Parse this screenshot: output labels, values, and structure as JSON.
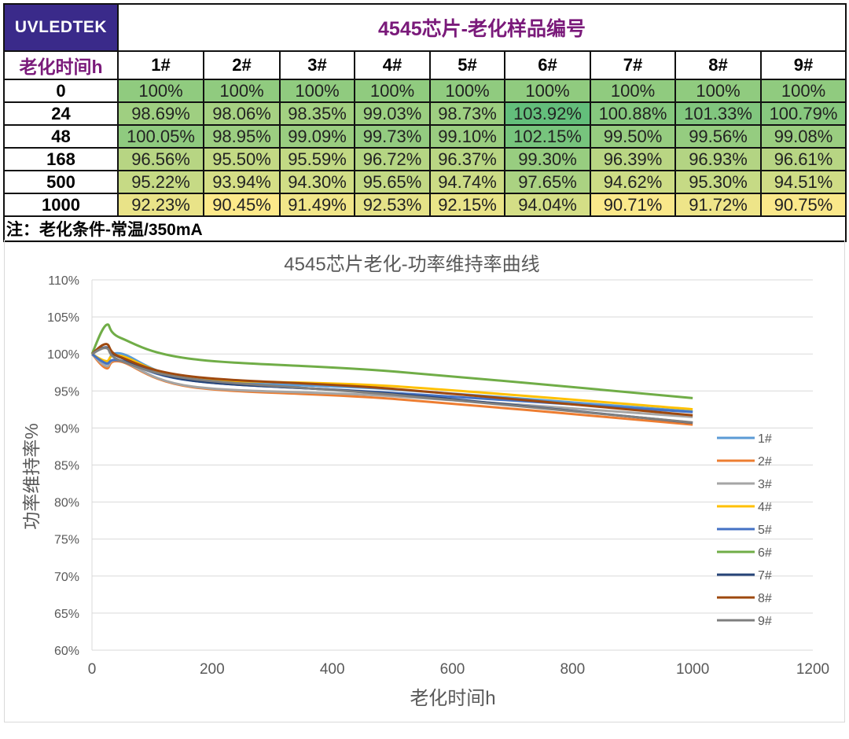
{
  "table": {
    "logo": "UVLEDTEK",
    "title": "4545芯片-老化样品编号",
    "time_header": "老化时间h",
    "columns": [
      "1#",
      "2#",
      "3#",
      "4#",
      "5#",
      "6#",
      "7#",
      "8#",
      "9#"
    ],
    "rows": [
      {
        "time": "0",
        "values": [
          "100%",
          "100%",
          "100%",
          "100%",
          "100%",
          "100%",
          "100%",
          "100%",
          "100%"
        ]
      },
      {
        "time": "24",
        "values": [
          "98.69%",
          "98.06%",
          "98.35%",
          "99.03%",
          "98.73%",
          "103.92%",
          "100.88%",
          "101.33%",
          "100.79%"
        ]
      },
      {
        "time": "48",
        "values": [
          "100.05%",
          "98.95%",
          "99.09%",
          "99.73%",
          "99.10%",
          "102.15%",
          "99.50%",
          "99.56%",
          "99.08%"
        ]
      },
      {
        "time": "168",
        "values": [
          "96.56%",
          "95.50%",
          "95.59%",
          "96.72%",
          "96.37%",
          "99.30%",
          "96.39%",
          "96.93%",
          "96.61%"
        ]
      },
      {
        "time": "500",
        "values": [
          "95.22%",
          "93.94%",
          "94.30%",
          "95.65%",
          "94.74%",
          "97.65%",
          "94.62%",
          "95.30%",
          "94.51%"
        ]
      },
      {
        "time": "1000",
        "values": [
          "92.23%",
          "90.45%",
          "91.49%",
          "92.53%",
          "92.15%",
          "94.04%",
          "90.71%",
          "91.72%",
          "90.75%"
        ]
      }
    ],
    "note": "注：老化条件-常温/350mA",
    "color_scale": {
      "low": "#fde98a",
      "high": "#63be7b"
    }
  },
  "chart_data": {
    "type": "line",
    "title": "4545芯片老化-功率维持率曲线",
    "xlabel": "老化时间h",
    "ylabel": "功率维持率%",
    "xlim": [
      0,
      1200
    ],
    "ylim": [
      60,
      110
    ],
    "xticks": [
      "0",
      "200",
      "400",
      "600",
      "800",
      "1000",
      "1200"
    ],
    "yticks": [
      "60%",
      "65%",
      "70%",
      "75%",
      "80%",
      "85%",
      "90%",
      "95%",
      "100%",
      "105%",
      "110%"
    ],
    "grid": "horizontal",
    "legend": "right",
    "x": [
      0,
      24,
      48,
      168,
      500,
      1000
    ],
    "series": [
      {
        "name": "1#",
        "color": "#5b9bd5",
        "values": [
          100,
          98.69,
          100.05,
          96.56,
          95.22,
          92.23
        ]
      },
      {
        "name": "2#",
        "color": "#ed7d31",
        "values": [
          100,
          98.06,
          98.95,
          95.5,
          93.94,
          90.45
        ]
      },
      {
        "name": "3#",
        "color": "#a5a5a5",
        "values": [
          100,
          98.35,
          99.09,
          95.59,
          94.3,
          91.49
        ]
      },
      {
        "name": "4#",
        "color": "#ffc000",
        "values": [
          100,
          99.03,
          99.73,
          96.72,
          95.65,
          92.53
        ]
      },
      {
        "name": "5#",
        "color": "#4472c4",
        "values": [
          100,
          98.73,
          99.1,
          96.37,
          94.74,
          92.15
        ]
      },
      {
        "name": "6#",
        "color": "#70ad47",
        "values": [
          100,
          103.92,
          102.15,
          99.3,
          97.65,
          94.04
        ]
      },
      {
        "name": "7#",
        "color": "#264478",
        "values": [
          100,
          100.88,
          99.5,
          96.39,
          94.62,
          90.71
        ]
      },
      {
        "name": "8#",
        "color": "#9e480e",
        "values": [
          100,
          101.33,
          99.56,
          96.93,
          95.3,
          91.72
        ]
      },
      {
        "name": "9#",
        "color": "#7f7f7f",
        "values": [
          100,
          100.79,
          99.08,
          96.61,
          94.51,
          90.75
        ]
      }
    ]
  }
}
